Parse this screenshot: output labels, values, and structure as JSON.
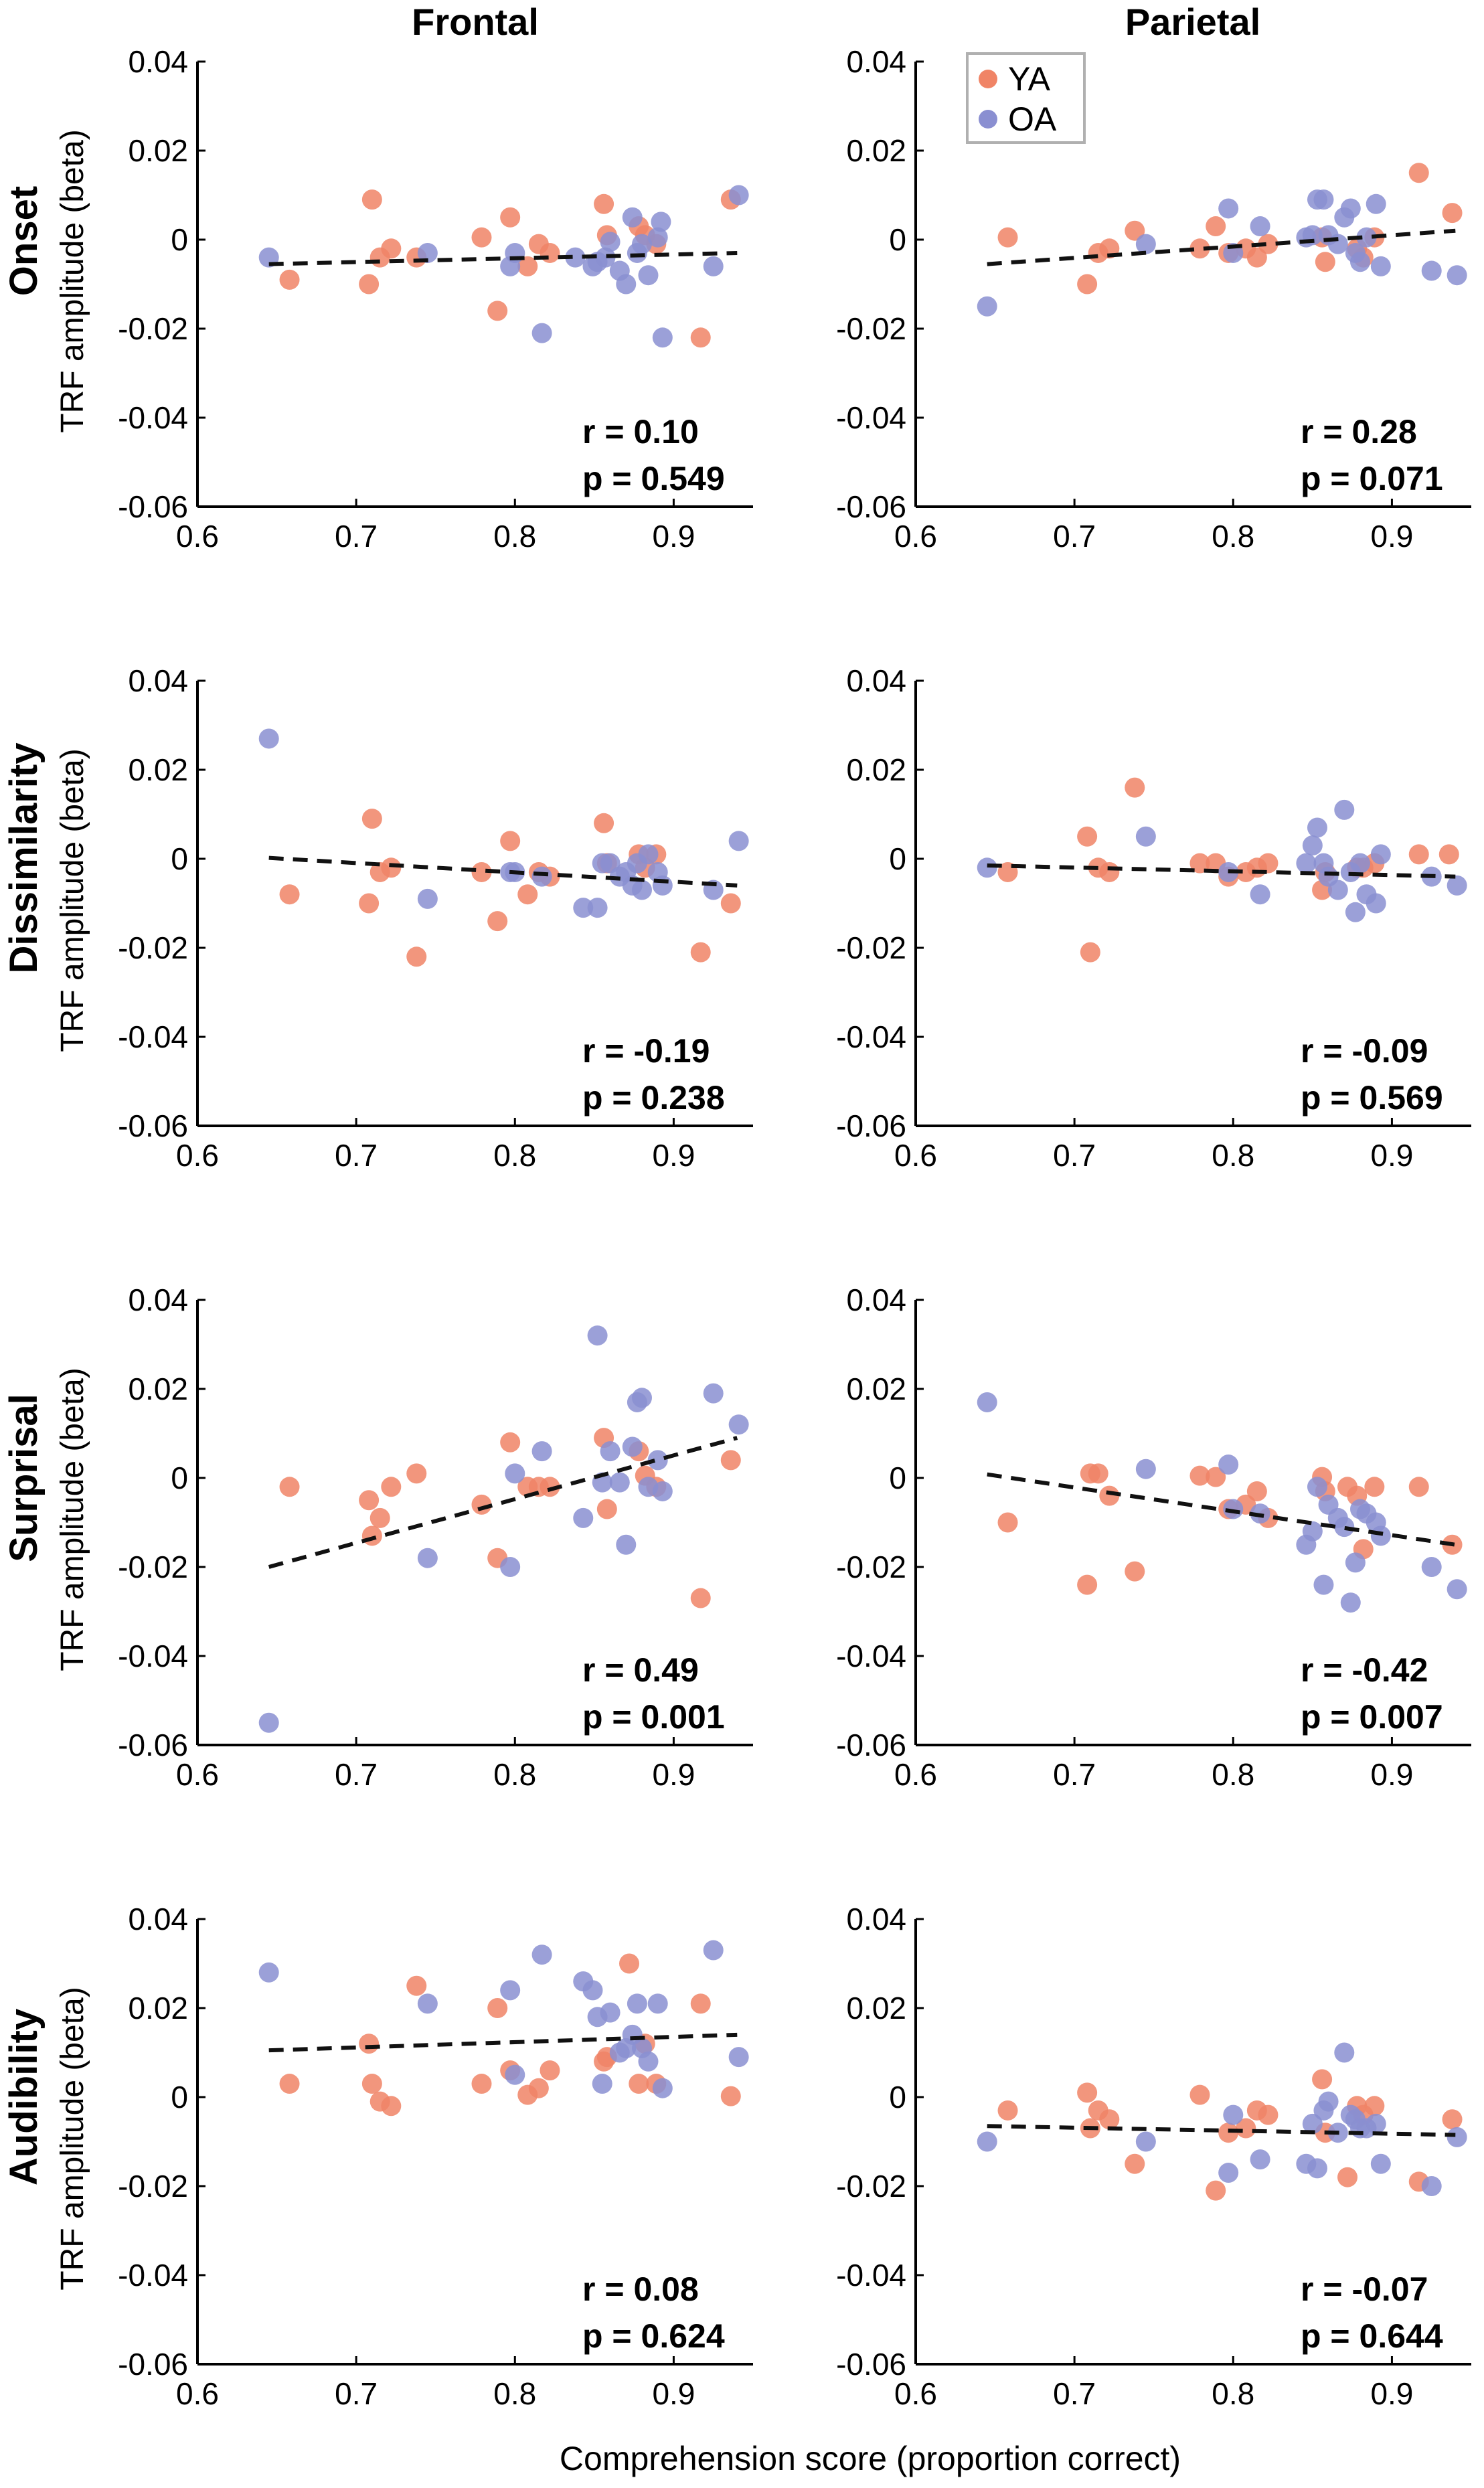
{
  "figure": {
    "xlabel": "Comprehension score (proportion correct)",
    "ylabel": "TRF amplitude (beta)",
    "columns": [
      "Frontal",
      "Parietal"
    ],
    "rows": [
      "Onset",
      "Dissimilarity",
      "Surprisal",
      "Audibility"
    ],
    "legend": [
      {
        "label": "YA",
        "color": "#f08466"
      },
      {
        "label": "OA",
        "color": "#8a8fd1"
      }
    ]
  },
  "chart_data": [
    {
      "type": "scatter",
      "row": "Onset",
      "column": "Frontal",
      "xlim": [
        0.6,
        0.95
      ],
      "ylim": [
        -0.06,
        0.04
      ],
      "xticks": [
        "0.6",
        "0.7",
        "0.8",
        "0.9"
      ],
      "yticks": [
        "-0.06",
        "-0.04",
        "-0.02",
        "0",
        "0.02",
        "0.04"
      ],
      "r_label": "r = 0.10",
      "p_label": "p = 0.549",
      "fit": {
        "x": [
          0.645,
          0.94
        ],
        "y": [
          -0.0055,
          -0.003
        ]
      },
      "series": [
        {
          "name": "YA",
          "x": [
            0.658,
            0.708,
            0.71,
            0.715,
            0.722,
            0.738,
            0.779,
            0.789,
            0.797,
            0.808,
            0.815,
            0.822,
            0.856,
            0.858,
            0.878,
            0.882,
            0.889,
            0.917,
            0.936
          ],
          "y": [
            -0.009,
            -0.01,
            0.009,
            -0.004,
            -0.002,
            -0.004,
            0.0005,
            -0.016,
            0.005,
            -0.006,
            -0.001,
            -0.003,
            0.008,
            0.001,
            0.003,
            0.001,
            -0.001,
            -0.022,
            0.009
          ]
        },
        {
          "name": "OA",
          "x": [
            0.645,
            0.745,
            0.797,
            0.8,
            0.817,
            0.838,
            0.849,
            0.852,
            0.857,
            0.86,
            0.866,
            0.87,
            0.874,
            0.877,
            0.88,
            0.884,
            0.89,
            0.892,
            0.893,
            0.925,
            0.941
          ],
          "y": [
            -0.004,
            -0.003,
            -0.006,
            -0.003,
            -0.021,
            -0.004,
            -0.006,
            -0.005,
            -0.004,
            -0.0005,
            -0.007,
            -0.01,
            0.005,
            -0.003,
            -0.001,
            -0.008,
            0.0005,
            0.004,
            -0.022,
            -0.006,
            0.01
          ]
        }
      ]
    },
    {
      "type": "scatter",
      "row": "Onset",
      "column": "Parietal",
      "xlim": [
        0.6,
        0.95
      ],
      "ylim": [
        -0.06,
        0.04
      ],
      "xticks": [
        "0.6",
        "0.7",
        "0.8",
        "0.9"
      ],
      "yticks": [
        "-0.06",
        "-0.04",
        "-0.02",
        "0",
        "0.02",
        "0.04"
      ],
      "r_label": "r = 0.28",
      "p_label": "p = 0.071",
      "fit": {
        "x": [
          0.645,
          0.94
        ],
        "y": [
          -0.0055,
          0.002
        ]
      },
      "series": [
        {
          "name": "YA",
          "x": [
            0.658,
            0.708,
            0.715,
            0.722,
            0.738,
            0.779,
            0.789,
            0.797,
            0.808,
            0.815,
            0.822,
            0.856,
            0.858,
            0.878,
            0.882,
            0.889,
            0.917,
            0.938
          ],
          "y": [
            0.0005,
            -0.01,
            -0.003,
            -0.002,
            0.002,
            -0.002,
            0.003,
            -0.003,
            -0.002,
            -0.004,
            -0.001,
            0.0005,
            -0.005,
            -0.002,
            -0.004,
            0.0005,
            0.015,
            0.006
          ]
        },
        {
          "name": "OA",
          "x": [
            0.645,
            0.745,
            0.797,
            0.8,
            0.817,
            0.846,
            0.85,
            0.853,
            0.857,
            0.86,
            0.866,
            0.87,
            0.874,
            0.877,
            0.88,
            0.884,
            0.89,
            0.893,
            0.925,
            0.941
          ],
          "y": [
            -0.015,
            -0.001,
            0.007,
            -0.003,
            0.003,
            0.0005,
            0.001,
            0.009,
            0.009,
            0.001,
            -0.001,
            0.005,
            0.007,
            -0.003,
            -0.005,
            0.0005,
            0.008,
            -0.006,
            -0.007,
            -0.008
          ]
        }
      ]
    },
    {
      "type": "scatter",
      "row": "Dissimilarity",
      "column": "Frontal",
      "xlim": [
        0.6,
        0.95
      ],
      "ylim": [
        -0.06,
        0.04
      ],
      "xticks": [
        "0.6",
        "0.7",
        "0.8",
        "0.9"
      ],
      "yticks": [
        "-0.06",
        "-0.04",
        "-0.02",
        "0",
        "0.02",
        "0.04"
      ],
      "r_label": "r = -0.19",
      "p_label": "p = 0.238",
      "fit": {
        "x": [
          0.645,
          0.94
        ],
        "y": [
          0.0002,
          -0.006
        ]
      },
      "series": [
        {
          "name": "YA",
          "x": [
            0.658,
            0.708,
            0.71,
            0.715,
            0.722,
            0.738,
            0.779,
            0.789,
            0.797,
            0.808,
            0.815,
            0.822,
            0.856,
            0.858,
            0.878,
            0.882,
            0.889,
            0.917,
            0.936
          ],
          "y": [
            -0.008,
            -0.01,
            0.009,
            -0.003,
            -0.002,
            -0.022,
            -0.003,
            -0.014,
            0.004,
            -0.008,
            -0.003,
            -0.004,
            0.008,
            -0.001,
            0.001,
            -0.002,
            0.001,
            -0.021,
            -0.01
          ]
        },
        {
          "name": "OA",
          "x": [
            0.645,
            0.745,
            0.797,
            0.8,
            0.817,
            0.843,
            0.852,
            0.855,
            0.86,
            0.866,
            0.87,
            0.874,
            0.877,
            0.88,
            0.884,
            0.89,
            0.893,
            0.925,
            0.941
          ],
          "y": [
            0.027,
            -0.009,
            -0.003,
            -0.003,
            -0.004,
            -0.011,
            -0.011,
            -0.001,
            -0.001,
            -0.004,
            -0.003,
            -0.006,
            -0.001,
            -0.007,
            0.001,
            -0.003,
            -0.006,
            -0.007,
            0.004
          ]
        }
      ]
    },
    {
      "type": "scatter",
      "row": "Dissimilarity",
      "column": "Parietal",
      "xlim": [
        0.6,
        0.95
      ],
      "ylim": [
        -0.06,
        0.04
      ],
      "xticks": [
        "0.6",
        "0.7",
        "0.8",
        "0.9"
      ],
      "yticks": [
        "-0.06",
        "-0.04",
        "-0.02",
        "0",
        "0.02",
        "0.04"
      ],
      "r_label": "r = -0.09",
      "p_label": "p = 0.569",
      "fit": {
        "x": [
          0.645,
          0.94
        ],
        "y": [
          -0.0015,
          -0.004
        ]
      },
      "series": [
        {
          "name": "YA",
          "x": [
            0.658,
            0.708,
            0.71,
            0.715,
            0.722,
            0.738,
            0.779,
            0.789,
            0.797,
            0.808,
            0.815,
            0.822,
            0.856,
            0.858,
            0.878,
            0.882,
            0.889,
            0.917,
            0.936
          ],
          "y": [
            -0.003,
            0.005,
            -0.021,
            -0.002,
            -0.003,
            0.016,
            -0.001,
            -0.001,
            -0.004,
            -0.003,
            -0.002,
            -0.001,
            -0.007,
            -0.003,
            -0.002,
            -0.002,
            -0.001,
            0.001,
            0.001
          ]
        },
        {
          "name": "OA",
          "x": [
            0.645,
            0.745,
            0.797,
            0.817,
            0.846,
            0.85,
            0.853,
            0.857,
            0.86,
            0.866,
            0.87,
            0.874,
            0.877,
            0.88,
            0.884,
            0.89,
            0.893,
            0.925,
            0.941
          ],
          "y": [
            -0.002,
            0.005,
            -0.003,
            -0.008,
            -0.001,
            0.003,
            0.007,
            -0.001,
            -0.004,
            -0.007,
            0.011,
            -0.003,
            -0.012,
            -0.001,
            -0.008,
            -0.01,
            0.001,
            -0.004,
            -0.006
          ]
        }
      ]
    },
    {
      "type": "scatter",
      "row": "Surprisal",
      "column": "Frontal",
      "xlim": [
        0.6,
        0.95
      ],
      "ylim": [
        -0.06,
        0.04
      ],
      "xticks": [
        "0.6",
        "0.7",
        "0.8",
        "0.9"
      ],
      "yticks": [
        "-0.06",
        "-0.04",
        "-0.02",
        "0",
        "0.02",
        "0.04"
      ],
      "r_label": "r = 0.49",
      "p_label": "p = 0.001",
      "fit": {
        "x": [
          0.645,
          0.94
        ],
        "y": [
          -0.02,
          0.009
        ]
      },
      "series": [
        {
          "name": "YA",
          "x": [
            0.658,
            0.708,
            0.71,
            0.715,
            0.722,
            0.738,
            0.779,
            0.789,
            0.797,
            0.808,
            0.815,
            0.822,
            0.856,
            0.858,
            0.878,
            0.882,
            0.889,
            0.917,
            0.936
          ],
          "y": [
            -0.002,
            -0.005,
            -0.013,
            -0.009,
            -0.002,
            0.001,
            -0.006,
            -0.018,
            0.008,
            -0.002,
            -0.002,
            -0.002,
            0.009,
            -0.007,
            0.006,
            0.0005,
            -0.002,
            -0.027,
            0.004
          ]
        },
        {
          "name": "OA",
          "x": [
            0.645,
            0.745,
            0.797,
            0.8,
            0.817,
            0.843,
            0.852,
            0.855,
            0.86,
            0.866,
            0.87,
            0.874,
            0.877,
            0.88,
            0.884,
            0.89,
            0.893,
            0.925,
            0.941
          ],
          "y": [
            -0.055,
            -0.018,
            -0.02,
            0.001,
            0.006,
            -0.009,
            0.032,
            -0.001,
            0.006,
            -0.001,
            -0.015,
            0.007,
            0.017,
            0.018,
            -0.002,
            0.004,
            -0.003,
            0.019,
            0.012
          ]
        }
      ]
    },
    {
      "type": "scatter",
      "row": "Surprisal",
      "column": "Parietal",
      "xlim": [
        0.6,
        0.95
      ],
      "ylim": [
        -0.06,
        0.04
      ],
      "xticks": [
        "0.6",
        "0.7",
        "0.8",
        "0.9"
      ],
      "yticks": [
        "-0.06",
        "-0.04",
        "-0.02",
        "0",
        "0.02",
        "0.04"
      ],
      "r_label": "r = -0.42",
      "p_label": "p = 0.007",
      "fit": {
        "x": [
          0.645,
          0.94
        ],
        "y": [
          0.0008,
          -0.015
        ]
      },
      "series": [
        {
          "name": "YA",
          "x": [
            0.658,
            0.708,
            0.71,
            0.715,
            0.722,
            0.738,
            0.779,
            0.789,
            0.797,
            0.808,
            0.815,
            0.822,
            0.856,
            0.858,
            0.872,
            0.878,
            0.882,
            0.889,
            0.917,
            0.938
          ],
          "y": [
            -0.01,
            -0.024,
            0.001,
            0.001,
            -0.004,
            -0.021,
            0.0005,
            0.0002,
            -0.007,
            -0.006,
            -0.003,
            -0.009,
            0.0002,
            -0.003,
            -0.002,
            -0.004,
            -0.016,
            -0.002,
            -0.002,
            -0.015
          ]
        },
        {
          "name": "OA",
          "x": [
            0.645,
            0.745,
            0.797,
            0.8,
            0.817,
            0.846,
            0.85,
            0.853,
            0.857,
            0.86,
            0.866,
            0.87,
            0.874,
            0.877,
            0.88,
            0.884,
            0.89,
            0.893,
            0.925,
            0.941
          ],
          "y": [
            0.017,
            0.002,
            0.003,
            -0.007,
            -0.008,
            -0.015,
            -0.012,
            -0.002,
            -0.024,
            -0.006,
            -0.009,
            -0.011,
            -0.028,
            -0.019,
            -0.007,
            -0.008,
            -0.01,
            -0.013,
            -0.02,
            -0.025
          ]
        }
      ]
    },
    {
      "type": "scatter",
      "row": "Audibility",
      "column": "Frontal",
      "xlim": [
        0.6,
        0.95
      ],
      "ylim": [
        -0.06,
        0.04
      ],
      "xticks": [
        "0.6",
        "0.7",
        "0.8",
        "0.9"
      ],
      "yticks": [
        "-0.06",
        "-0.04",
        "-0.02",
        "0",
        "0.02",
        "0.04"
      ],
      "r_label": "r = 0.08",
      "p_label": "p = 0.624",
      "fit": {
        "x": [
          0.645,
          0.94
        ],
        "y": [
          0.0105,
          0.014
        ]
      },
      "series": [
        {
          "name": "YA",
          "x": [
            0.658,
            0.708,
            0.71,
            0.715,
            0.722,
            0.738,
            0.779,
            0.789,
            0.797,
            0.808,
            0.815,
            0.822,
            0.856,
            0.858,
            0.872,
            0.878,
            0.882,
            0.889,
            0.917,
            0.936
          ],
          "y": [
            0.003,
            0.012,
            0.003,
            -0.001,
            -0.002,
            0.025,
            0.003,
            0.02,
            0.006,
            0.0005,
            0.002,
            0.006,
            0.008,
            0.009,
            0.03,
            0.003,
            0.012,
            0.003,
            0.021,
            0.0002
          ]
        },
        {
          "name": "OA",
          "x": [
            0.645,
            0.745,
            0.797,
            0.8,
            0.817,
            0.843,
            0.849,
            0.852,
            0.855,
            0.86,
            0.866,
            0.87,
            0.874,
            0.877,
            0.88,
            0.884,
            0.89,
            0.893,
            0.925,
            0.941
          ],
          "y": [
            0.028,
            0.021,
            0.024,
            0.005,
            0.032,
            0.026,
            0.024,
            0.018,
            0.003,
            0.019,
            0.01,
            0.011,
            0.014,
            0.021,
            0.011,
            0.008,
            0.021,
            0.002,
            0.033,
            0.009
          ]
        }
      ]
    },
    {
      "type": "scatter",
      "row": "Audibility",
      "column": "Parietal",
      "xlim": [
        0.6,
        0.95
      ],
      "ylim": [
        -0.06,
        0.04
      ],
      "xticks": [
        "0.6",
        "0.7",
        "0.8",
        "0.9"
      ],
      "yticks": [
        "-0.06",
        "-0.04",
        "-0.02",
        "0",
        "0.02",
        "0.04"
      ],
      "r_label": "r = -0.07",
      "p_label": "p = 0.644",
      "fit": {
        "x": [
          0.645,
          0.94
        ],
        "y": [
          -0.0065,
          -0.0085
        ]
      },
      "series": [
        {
          "name": "YA",
          "x": [
            0.658,
            0.708,
            0.71,
            0.715,
            0.722,
            0.738,
            0.779,
            0.789,
            0.797,
            0.808,
            0.815,
            0.822,
            0.856,
            0.858,
            0.872,
            0.878,
            0.882,
            0.889,
            0.917,
            0.938
          ],
          "y": [
            -0.003,
            0.001,
            -0.007,
            -0.003,
            -0.005,
            -0.015,
            0.0005,
            -0.021,
            -0.008,
            -0.007,
            -0.003,
            -0.004,
            0.004,
            -0.008,
            -0.018,
            -0.002,
            -0.004,
            -0.002,
            -0.019,
            -0.005
          ]
        },
        {
          "name": "OA",
          "x": [
            0.645,
            0.745,
            0.797,
            0.8,
            0.817,
            0.846,
            0.85,
            0.853,
            0.857,
            0.86,
            0.866,
            0.87,
            0.874,
            0.877,
            0.88,
            0.884,
            0.89,
            0.893,
            0.925,
            0.941
          ],
          "y": [
            -0.01,
            -0.01,
            -0.017,
            -0.004,
            -0.014,
            -0.015,
            -0.006,
            -0.016,
            -0.003,
            -0.001,
            -0.008,
            0.01,
            -0.004,
            -0.005,
            -0.007,
            -0.007,
            -0.006,
            -0.015,
            -0.02,
            -0.009
          ]
        }
      ]
    }
  ]
}
